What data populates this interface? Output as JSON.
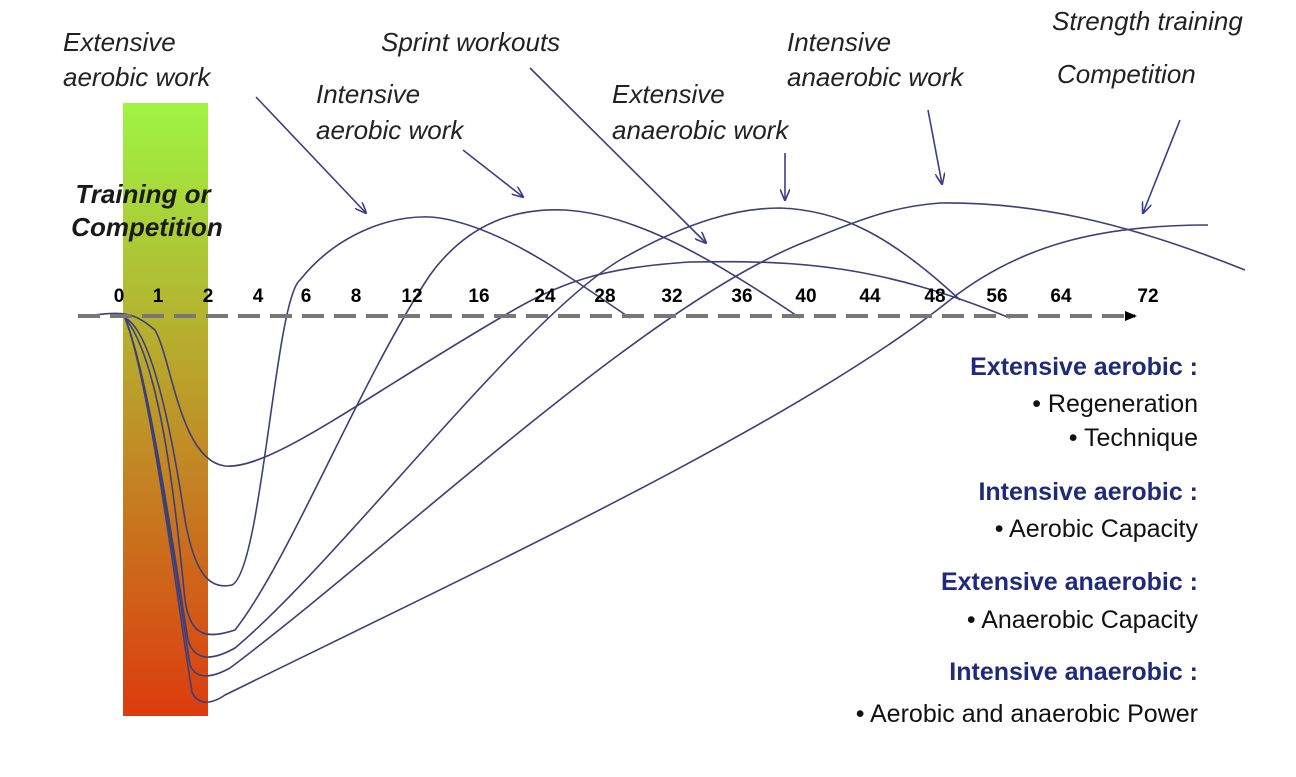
{
  "diagram": {
    "phase_label": [
      "Training or",
      "Competition"
    ],
    "time_ticks": [
      "0",
      "1",
      "2",
      "4",
      "6",
      "8",
      "12",
      "16",
      "24",
      "28",
      "32",
      "36",
      "40",
      "44",
      "48",
      "56",
      "64",
      "72"
    ],
    "workout_labels": [
      {
        "id": "extensive-aerobic-work",
        "lines": [
          "Extensive",
          "aerobic work"
        ]
      },
      {
        "id": "intensive-aerobic-work",
        "lines": [
          "Intensive",
          "aerobic work"
        ]
      },
      {
        "id": "sprint-workouts",
        "lines": [
          "Sprint workouts"
        ]
      },
      {
        "id": "extensive-anaerobic-work",
        "lines": [
          "Extensive",
          "anaerobic work"
        ]
      },
      {
        "id": "intensive-anaerobic-work",
        "lines": [
          "Intensive",
          "anaerobic work"
        ]
      },
      {
        "id": "strength-training",
        "lines": [
          "Strength training"
        ]
      },
      {
        "id": "competition",
        "lines": [
          "Competition"
        ]
      }
    ],
    "legend": [
      {
        "heading": "Extensive aerobic :",
        "items": [
          "• Regeneration",
          "• Technique"
        ]
      },
      {
        "heading": "Intensive aerobic :",
        "items": [
          "• Aerobic Capacity"
        ]
      },
      {
        "heading": "Extensive anaerobic :",
        "items": [
          "• Anaerobic Capacity"
        ]
      },
      {
        "heading": "Intensive anaerobic :",
        "items": [
          "• Aerobic and anaerobic Power"
        ]
      }
    ],
    "colors": {
      "bar_top": "#9ef542",
      "bar_bottom": "#dc3b0e",
      "curve": "#3d3f78",
      "legend_heading": "#1f2a7a",
      "axis": "#777777"
    }
  }
}
